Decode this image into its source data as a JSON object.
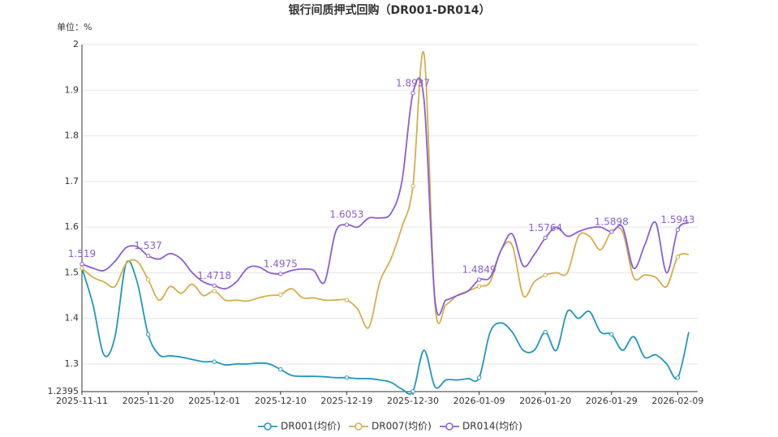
{
  "chart_data": {
    "type": "line",
    "title": "银行间质押式回购（DR001-DR014）",
    "y_unit_label": "单位：%",
    "categories": [
      "2025-11-11",
      null,
      null,
      null,
      null,
      null,
      "2025-11-20",
      null,
      null,
      null,
      null,
      null,
      "2025-12-01",
      null,
      null,
      null,
      null,
      null,
      "2025-12-10",
      null,
      null,
      null,
      null,
      null,
      "2025-12-19",
      null,
      null,
      null,
      null,
      null,
      "2025-12-30",
      null,
      null,
      null,
      null,
      null,
      "2026-01-09",
      null,
      null,
      null,
      null,
      null,
      "2026-01-20",
      null,
      null,
      null,
      null,
      null,
      "2026-01-29",
      null,
      null,
      null,
      null,
      null,
      "2026-02-09",
      null
    ],
    "series": [
      {
        "name": "DR001(均价)",
        "color": "#1f97bd",
        "values": [
          1.51,
          1.43,
          1.32,
          1.36,
          1.52,
          1.48,
          1.365,
          1.32,
          1.318,
          1.315,
          1.31,
          1.305,
          1.305,
          1.298,
          1.3,
          1.3,
          1.302,
          1.3,
          1.288,
          1.275,
          1.273,
          1.273,
          1.272,
          1.27,
          1.27,
          1.268,
          1.268,
          1.265,
          1.26,
          1.245,
          1.24,
          1.33,
          1.25,
          1.265,
          1.265,
          1.268,
          1.27,
          1.37,
          1.39,
          1.37,
          1.33,
          1.33,
          1.37,
          1.33,
          1.415,
          1.4,
          1.415,
          1.37,
          1.365,
          1.33,
          1.36,
          1.315,
          1.32,
          1.3,
          1.27,
          1.37
        ]
      },
      {
        "name": "DR007(均价)",
        "color": "#d6ad4c",
        "values": [
          1.51,
          1.49,
          1.48,
          1.47,
          1.52,
          1.525,
          1.485,
          1.44,
          1.47,
          1.455,
          1.475,
          1.45,
          1.46,
          1.44,
          1.44,
          1.438,
          1.445,
          1.45,
          1.452,
          1.465,
          1.445,
          1.445,
          1.44,
          1.44,
          1.44,
          1.42,
          1.38,
          1.48,
          1.53,
          1.6,
          1.69,
          1.98,
          1.43,
          1.43,
          1.45,
          1.46,
          1.47,
          1.48,
          1.55,
          1.56,
          1.45,
          1.48,
          1.495,
          1.5,
          1.5,
          1.58,
          1.58,
          1.55,
          1.59,
          1.59,
          1.49,
          1.495,
          1.49,
          1.47,
          1.535,
          1.54
        ]
      },
      {
        "name": "DR014(均价)",
        "color": "#8b5fd3",
        "values": [
          1.519,
          1.51,
          1.505,
          1.525,
          1.555,
          1.557,
          1.537,
          1.53,
          1.542,
          1.53,
          1.5,
          1.48,
          1.4718,
          1.465,
          1.48,
          1.51,
          1.513,
          1.5,
          1.4975,
          1.505,
          1.508,
          1.505,
          1.48,
          1.59,
          1.6053,
          1.6,
          1.62,
          1.62,
          1.63,
          1.7,
          1.8937,
          1.88,
          1.44,
          1.44,
          1.45,
          1.46,
          1.4849,
          1.49,
          1.55,
          1.585,
          1.515,
          1.54,
          1.5764,
          1.6,
          1.58,
          1.59,
          1.598,
          1.6,
          1.5898,
          1.6,
          1.51,
          1.56,
          1.61,
          1.5,
          1.5943,
          1.61
        ]
      }
    ],
    "ylim": [
      1.2395,
      2
    ],
    "yticks": [
      1.2395,
      1.3,
      1.4,
      1.5,
      1.6,
      1.7,
      1.8,
      1.9,
      2
    ],
    "grid": true
  }
}
